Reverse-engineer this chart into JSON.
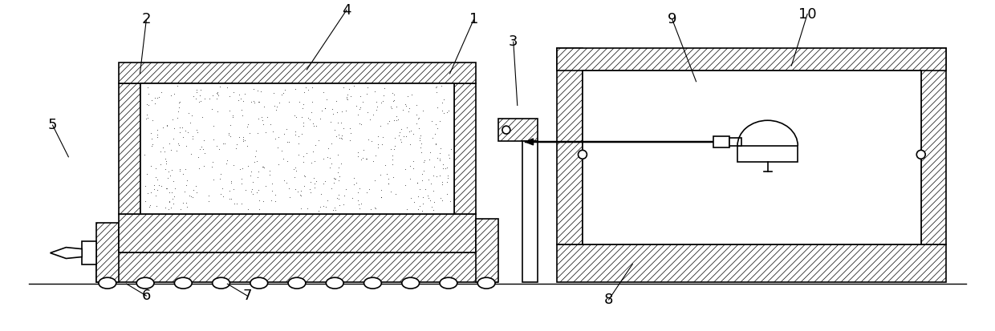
{
  "bg_color": "#ffffff",
  "line_color": "#000000",
  "figsize": [
    12.4,
    4.13
  ],
  "dpi": 100,
  "lw": 1.2,
  "hatch_lw": 0.5,
  "fs": 13
}
